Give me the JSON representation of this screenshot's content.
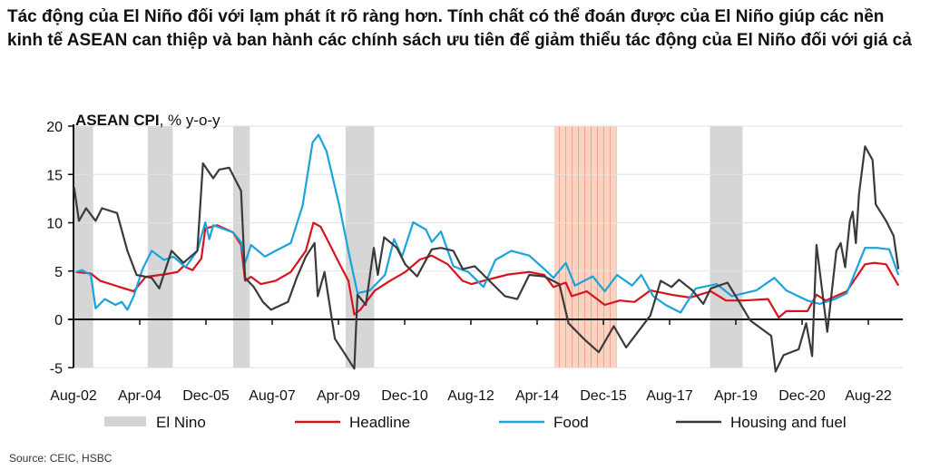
{
  "title": "Tác động của El Niño đối với lạm phát ít rõ ràng hơn. Tính chất có thể đoán được của El Niño giúp các nền kinh tế ASEAN can thiệp và ban hành các chính sách ưu tiên để giảm thiểu tác động của El Niño đối với giá cả",
  "source": "Source: CEIC, HSBC",
  "chart_data": {
    "type": "line",
    "title": "ASEAN CPI",
    "title_suffix": ", % y-o-y",
    "xlabel": "",
    "ylabel": "% y-o-y",
    "ylim": [
      -5,
      20
    ],
    "yticks": [
      20,
      15,
      10,
      5,
      0,
      -5
    ],
    "xlim": [
      2002.583,
      2023.45
    ],
    "xticks": [
      {
        "label": "Aug-02",
        "x": 2002.583
      },
      {
        "label": "Apr-04",
        "x": 2004.25
      },
      {
        "label": "Dec-05",
        "x": 2005.917
      },
      {
        "label": "Aug-07",
        "x": 2007.583
      },
      {
        "label": "Apr-09",
        "x": 2009.25
      },
      {
        "label": "Dec-10",
        "x": 2010.917
      },
      {
        "label": "Aug-12",
        "x": 2012.583
      },
      {
        "label": "Apr-14",
        "x": 2014.25
      },
      {
        "label": "Dec-15",
        "x": 2015.917
      },
      {
        "label": "Aug-17",
        "x": 2017.583
      },
      {
        "label": "Apr-19",
        "x": 2019.25
      },
      {
        "label": "Dec-20",
        "x": 2020.917
      },
      {
        "label": "Aug-22",
        "x": 2022.583
      }
    ],
    "grid": true,
    "legend_position": "bottom",
    "el_nino_periods": [
      {
        "start": 2002.6,
        "end": 2003.08,
        "strong": false
      },
      {
        "start": 2004.45,
        "end": 2005.08,
        "strong": false
      },
      {
        "start": 2006.6,
        "end": 2007.02,
        "strong": false
      },
      {
        "start": 2009.43,
        "end": 2010.15,
        "strong": false
      },
      {
        "start": 2014.68,
        "end": 2016.25,
        "strong": true
      },
      {
        "start": 2018.6,
        "end": 2019.42,
        "strong": false
      }
    ],
    "legend": [
      {
        "name": "El Nino",
        "kind": "band",
        "color": "#d3d3d3"
      },
      {
        "name": "Headline",
        "kind": "line",
        "color": "#d7141e"
      },
      {
        "name": "Food",
        "kind": "line",
        "color": "#1aa3dc"
      },
      {
        "name": "Housing and fuel",
        "kind": "line",
        "color": "#3a3a3a"
      }
    ],
    "series": [
      {
        "name": "Headline",
        "color": "#d7141e",
        "points": [
          [
            2002.64,
            4.9
          ],
          [
            2003.02,
            4.75
          ],
          [
            2003.25,
            4.0
          ],
          [
            2003.79,
            3.3
          ],
          [
            2004.1,
            2.9
          ],
          [
            2004.4,
            4.4
          ],
          [
            2004.86,
            4.65
          ],
          [
            2005.2,
            4.9
          ],
          [
            2005.35,
            5.5
          ],
          [
            2005.58,
            5.1
          ],
          [
            2005.8,
            6.3
          ],
          [
            2005.9,
            9.4
          ],
          [
            2006.2,
            9.75
          ],
          [
            2006.6,
            9.0
          ],
          [
            2006.8,
            7.7
          ],
          [
            2006.9,
            4.0
          ],
          [
            2007.05,
            4.4
          ],
          [
            2007.3,
            3.65
          ],
          [
            2007.67,
            4.0
          ],
          [
            2008.05,
            4.9
          ],
          [
            2008.43,
            7.1
          ],
          [
            2008.62,
            10.0
          ],
          [
            2008.8,
            9.6
          ],
          [
            2009.0,
            8.0
          ],
          [
            2009.27,
            5.8
          ],
          [
            2009.5,
            4.0
          ],
          [
            2009.65,
            0.5
          ],
          [
            2009.8,
            1.0
          ],
          [
            2010.17,
            3.0
          ],
          [
            2010.55,
            4.0
          ],
          [
            2010.93,
            4.9
          ],
          [
            2011.3,
            6.2
          ],
          [
            2011.6,
            6.6
          ],
          [
            2012.0,
            5.7
          ],
          [
            2012.37,
            4.0
          ],
          [
            2012.6,
            3.65
          ],
          [
            2012.9,
            4.0
          ],
          [
            2013.52,
            4.65
          ],
          [
            2014.05,
            4.9
          ],
          [
            2014.43,
            4.6
          ],
          [
            2014.66,
            3.35
          ],
          [
            2014.97,
            3.8
          ],
          [
            2015.12,
            2.4
          ],
          [
            2015.5,
            2.9
          ],
          [
            2015.95,
            1.5
          ],
          [
            2016.33,
            1.95
          ],
          [
            2016.7,
            1.8
          ],
          [
            2017.1,
            3.0
          ],
          [
            2017.63,
            2.55
          ],
          [
            2018.1,
            2.25
          ],
          [
            2018.62,
            2.9
          ],
          [
            2019.0,
            1.95
          ],
          [
            2019.45,
            1.95
          ],
          [
            2020.06,
            2.1
          ],
          [
            2020.33,
            0.2
          ],
          [
            2020.52,
            0.85
          ],
          [
            2021.05,
            0.85
          ],
          [
            2021.28,
            2.55
          ],
          [
            2021.51,
            1.95
          ],
          [
            2022.04,
            2.9
          ],
          [
            2022.5,
            5.7
          ],
          [
            2022.73,
            5.85
          ],
          [
            2023.03,
            5.7
          ],
          [
            2023.34,
            3.5
          ]
        ]
      },
      {
        "name": "Food",
        "color": "#1aa3dc",
        "points": [
          [
            2002.64,
            4.9
          ],
          [
            2002.8,
            5.1
          ],
          [
            2003.02,
            4.6
          ],
          [
            2003.14,
            1.15
          ],
          [
            2003.37,
            2.1
          ],
          [
            2003.64,
            1.5
          ],
          [
            2003.8,
            1.8
          ],
          [
            2003.94,
            1.0
          ],
          [
            2004.1,
            2.4
          ],
          [
            2004.32,
            5.2
          ],
          [
            2004.55,
            7.1
          ],
          [
            2004.86,
            6.15
          ],
          [
            2005.1,
            6.5
          ],
          [
            2005.4,
            5.4
          ],
          [
            2005.7,
            7.1
          ],
          [
            2005.9,
            10.05
          ],
          [
            2006.0,
            8.3
          ],
          [
            2006.1,
            9.75
          ],
          [
            2006.6,
            9.0
          ],
          [
            2006.8,
            8.0
          ],
          [
            2006.9,
            5.85
          ],
          [
            2007.05,
            7.7
          ],
          [
            2007.4,
            6.5
          ],
          [
            2007.67,
            7.1
          ],
          [
            2008.05,
            7.9
          ],
          [
            2008.35,
            11.8
          ],
          [
            2008.6,
            18.3
          ],
          [
            2008.75,
            19.1
          ],
          [
            2008.95,
            17.4
          ],
          [
            2009.27,
            11.8
          ],
          [
            2009.5,
            7.1
          ],
          [
            2009.73,
            2.7
          ],
          [
            2010.04,
            3.0
          ],
          [
            2010.42,
            4.6
          ],
          [
            2010.65,
            8.3
          ],
          [
            2010.85,
            6.5
          ],
          [
            2011.13,
            10.05
          ],
          [
            2011.45,
            9.3
          ],
          [
            2011.6,
            8.0
          ],
          [
            2011.83,
            9.1
          ],
          [
            2012.14,
            5.5
          ],
          [
            2012.52,
            4.9
          ],
          [
            2012.9,
            3.35
          ],
          [
            2013.2,
            6.15
          ],
          [
            2013.6,
            7.1
          ],
          [
            2014.05,
            6.6
          ],
          [
            2014.43,
            5.2
          ],
          [
            2014.66,
            4.3
          ],
          [
            2014.97,
            5.85
          ],
          [
            2015.2,
            3.5
          ],
          [
            2015.65,
            4.45
          ],
          [
            2015.95,
            2.9
          ],
          [
            2016.26,
            4.6
          ],
          [
            2016.64,
            3.5
          ],
          [
            2016.87,
            4.6
          ],
          [
            2017.17,
            2.4
          ],
          [
            2017.48,
            1.5
          ],
          [
            2017.86,
            0.7
          ],
          [
            2018.24,
            3.2
          ],
          [
            2018.77,
            3.65
          ],
          [
            2019.15,
            2.4
          ],
          [
            2019.76,
            3.0
          ],
          [
            2020.22,
            4.3
          ],
          [
            2020.52,
            3.0
          ],
          [
            2021.05,
            1.95
          ],
          [
            2021.36,
            1.6
          ],
          [
            2021.74,
            2.1
          ],
          [
            2022.04,
            2.7
          ],
          [
            2022.5,
            7.4
          ],
          [
            2022.8,
            7.4
          ],
          [
            2023.11,
            7.25
          ],
          [
            2023.34,
            4.6
          ]
        ]
      },
      {
        "name": "Housing and fuel",
        "color": "#3a3a3a",
        "points": [
          [
            2002.6,
            13.65
          ],
          [
            2002.72,
            10.2
          ],
          [
            2002.9,
            11.5
          ],
          [
            2003.14,
            10.2
          ],
          [
            2003.3,
            11.5
          ],
          [
            2003.68,
            11.0
          ],
          [
            2003.94,
            7.1
          ],
          [
            2004.17,
            4.6
          ],
          [
            2004.55,
            4.3
          ],
          [
            2004.74,
            3.2
          ],
          [
            2005.05,
            7.1
          ],
          [
            2005.35,
            5.85
          ],
          [
            2005.7,
            7.1
          ],
          [
            2005.84,
            16.15
          ],
          [
            2006.1,
            14.6
          ],
          [
            2006.25,
            15.5
          ],
          [
            2006.5,
            15.7
          ],
          [
            2006.8,
            13.3
          ],
          [
            2006.9,
            4.3
          ],
          [
            2007.12,
            3.35
          ],
          [
            2007.35,
            1.8
          ],
          [
            2007.55,
            1.0
          ],
          [
            2007.98,
            1.8
          ],
          [
            2008.2,
            4.3
          ],
          [
            2008.43,
            6.5
          ],
          [
            2008.65,
            7.9
          ],
          [
            2008.73,
            2.4
          ],
          [
            2008.9,
            4.9
          ],
          [
            2009.16,
            -2.0
          ],
          [
            2009.4,
            -3.5
          ],
          [
            2009.65,
            -5.1
          ],
          [
            2009.73,
            2.55
          ],
          [
            2009.94,
            1.5
          ],
          [
            2010.14,
            7.4
          ],
          [
            2010.24,
            4.6
          ],
          [
            2010.4,
            8.5
          ],
          [
            2010.72,
            7.4
          ],
          [
            2010.93,
            5.7
          ],
          [
            2011.23,
            4.45
          ],
          [
            2011.6,
            7.25
          ],
          [
            2011.83,
            7.4
          ],
          [
            2012.14,
            7.1
          ],
          [
            2012.38,
            5.2
          ],
          [
            2012.68,
            5.5
          ],
          [
            2013.44,
            2.4
          ],
          [
            2013.75,
            2.1
          ],
          [
            2014.05,
            4.6
          ],
          [
            2014.43,
            4.45
          ],
          [
            2014.81,
            3.65
          ],
          [
            2015.04,
            -0.4
          ],
          [
            2015.42,
            -2.0
          ],
          [
            2015.8,
            -3.4
          ],
          [
            2016.18,
            -0.7
          ],
          [
            2016.49,
            -2.9
          ],
          [
            2017.1,
            0.4
          ],
          [
            2017.36,
            4.0
          ],
          [
            2017.63,
            3.35
          ],
          [
            2017.82,
            4.1
          ],
          [
            2018.16,
            3.0
          ],
          [
            2018.43,
            1.6
          ],
          [
            2018.62,
            3.2
          ],
          [
            2019.04,
            3.8
          ],
          [
            2019.38,
            1.5
          ],
          [
            2019.61,
            -0.1
          ],
          [
            2020.14,
            -1.7
          ],
          [
            2020.25,
            -5.4
          ],
          [
            2020.45,
            -3.7
          ],
          [
            2020.83,
            -3.1
          ],
          [
            2021.02,
            -0.4
          ],
          [
            2021.17,
            -3.8
          ],
          [
            2021.28,
            7.7
          ],
          [
            2021.55,
            -1.3
          ],
          [
            2021.78,
            7.1
          ],
          [
            2021.89,
            7.9
          ],
          [
            2022.0,
            5.4
          ],
          [
            2022.12,
            10.2
          ],
          [
            2022.19,
            11.15
          ],
          [
            2022.27,
            7.9
          ],
          [
            2022.35,
            13.0
          ],
          [
            2022.5,
            17.9
          ],
          [
            2022.69,
            16.5
          ],
          [
            2022.77,
            11.9
          ],
          [
            2023.03,
            10.2
          ],
          [
            2023.22,
            8.65
          ],
          [
            2023.34,
            5.2
          ]
        ]
      }
    ]
  }
}
